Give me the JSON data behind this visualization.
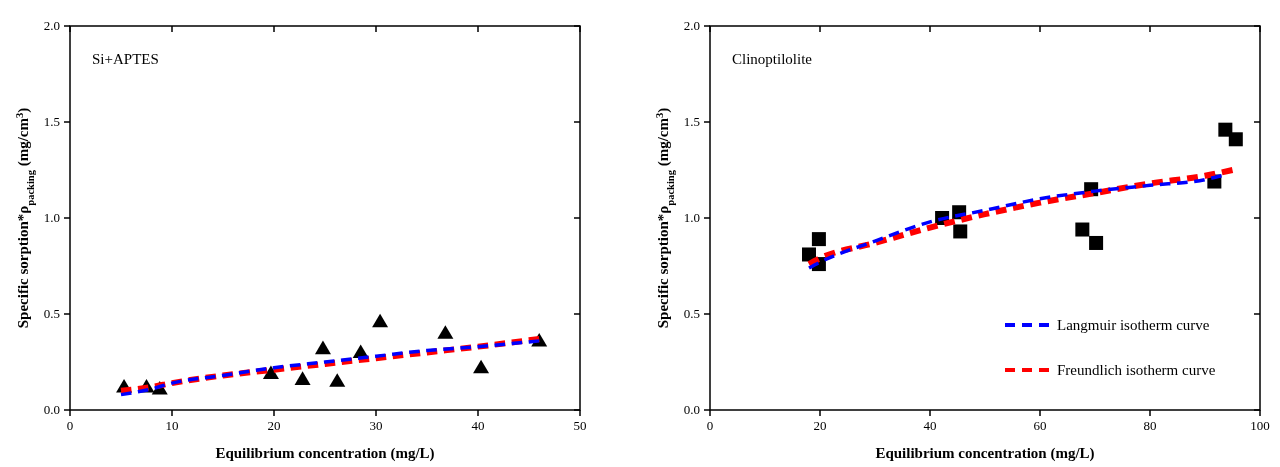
{
  "chart_data": [
    {
      "type": "scatter",
      "xlabel": "Equilibrium concentration (mg/L)",
      "ylabel": "Specific sorption*ρ$_{packing}$ (mg/cm$^{3}$)",
      "annotations": [
        "Si+APTES"
      ],
      "xlim": [
        0,
        50
      ],
      "xticks": [
        0,
        10,
        20,
        30,
        40,
        50
      ],
      "ylim": [
        0,
        2
      ],
      "yticks": [
        {
          "value": 0,
          "label": "0.0"
        },
        {
          "value": 0.5,
          "label": "0.5"
        },
        {
          "value": 1,
          "label": "1.0"
        },
        {
          "value": 1.5,
          "label": "1.5"
        },
        {
          "value": 2,
          "label": "2.0"
        }
      ],
      "grid": false,
      "legend": false,
      "series": [
        {
          "type": "line",
          "color": "#ff0000",
          "line_style": "dashed",
          "marker": "none",
          "x": [
            5,
            8,
            10,
            15,
            20,
            25,
            30,
            35,
            40,
            46
          ],
          "values": [
            0.1,
            0.12,
            0.14,
            0.18,
            0.21,
            0.24,
            0.27,
            0.3,
            0.33,
            0.37
          ]
        },
        {
          "type": "line",
          "color": "#0000ff",
          "line_style": "dashed",
          "marker": "none",
          "x": [
            5,
            8,
            10,
            15,
            20,
            25,
            30,
            35,
            40,
            46
          ],
          "values": [
            0.08,
            0.11,
            0.14,
            0.18,
            0.22,
            0.25,
            0.28,
            0.31,
            0.33,
            0.36
          ]
        },
        {
          "type": "scatter",
          "color": "#000000",
          "marker": "triangle",
          "x": [
            5.3,
            7.5,
            8.8,
            19.7,
            22.8,
            24.8,
            26.2,
            28.5,
            30.4,
            36.8,
            40.3,
            46
          ],
          "values": [
            0.12,
            0.12,
            0.11,
            0.19,
            0.16,
            0.32,
            0.15,
            0.3,
            0.46,
            0.4,
            0.22,
            0.36
          ]
        }
      ]
    },
    {
      "type": "scatter",
      "xlabel": "Equilibrium concentration (mg/L)",
      "ylabel": "Specific sorption*ρ$_{packing}$ (mg/cm$^{3}$)",
      "annotations": [
        "Clinoptilolite"
      ],
      "xlim": [
        0,
        100
      ],
      "xticks": [
        0,
        20,
        40,
        60,
        80,
        100
      ],
      "ylim": [
        0,
        2
      ],
      "yticks": [
        {
          "value": 0,
          "label": "0.0"
        },
        {
          "value": 0.5,
          "label": "0.5"
        },
        {
          "value": 1,
          "label": "1.0"
        },
        {
          "value": 1.5,
          "label": "1.5"
        },
        {
          "value": 2,
          "label": "2.0"
        }
      ],
      "grid": false,
      "legend": "bottom right",
      "series": [
        {
          "type": "line",
          "name": "Freundlich isotherm curve",
          "color": "#ff0000",
          "line_style": "dashed",
          "marker": "none",
          "x": [
            18,
            20,
            30,
            40,
            50,
            60,
            70,
            80,
            90,
            95
          ],
          "values": [
            0.76,
            0.79,
            0.87,
            0.95,
            1.02,
            1.08,
            1.13,
            1.18,
            1.22,
            1.25
          ]
        },
        {
          "type": "line",
          "name": "Langmuir isotherm curve",
          "color": "#0000ff",
          "line_style": "dashed",
          "marker": "none",
          "x": [
            18,
            20,
            30,
            40,
            50,
            60,
            70,
            80,
            90,
            93
          ],
          "values": [
            0.74,
            0.77,
            0.88,
            0.98,
            1.04,
            1.1,
            1.14,
            1.17,
            1.2,
            1.22
          ]
        },
        {
          "type": "scatter",
          "color": "#000000",
          "marker": "square",
          "x": [
            18,
            19.8,
            19.8,
            42.2,
            45.3,
            45.5,
            67.7,
            69.3,
            70.2,
            91.7,
            93.7,
            95.6
          ],
          "values": [
            0.81,
            0.89,
            0.76,
            1.0,
            1.03,
            0.93,
            0.94,
            1.15,
            0.87,
            1.19,
            1.46,
            1.41
          ]
        }
      ]
    }
  ]
}
